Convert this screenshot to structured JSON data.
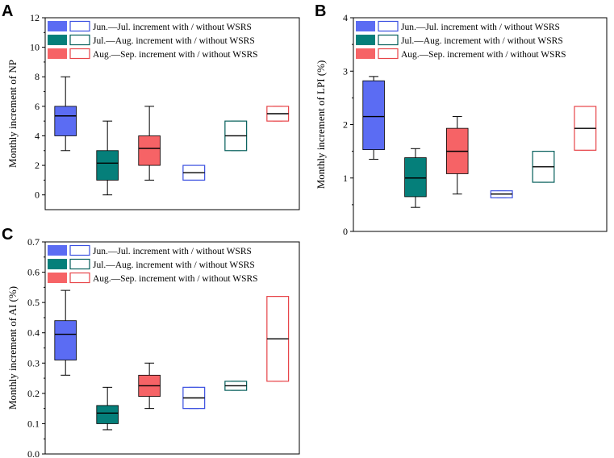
{
  "colors": {
    "series1": "#5b6cf3",
    "series1_edge": "#3a4fe0",
    "series2": "#057f7a",
    "series2_edge": "#045e5a",
    "series3": "#f66366",
    "series3_edge": "#e74448",
    "axis": "#000000"
  },
  "legend": [
    "Jun.—Jul. increment with / without WSRS",
    "Jul.—Aug. increment with / without WSRS",
    "Aug.—Sep. increment with / without WSRS"
  ],
  "chart_data": [
    {
      "type": "box",
      "panel": "A",
      "title": "",
      "xlabel": "",
      "ylabel": "Monthly increment of NP",
      "ylim": [
        -1,
        12
      ],
      "yticks": [
        0,
        2,
        4,
        6,
        8,
        10,
        12
      ],
      "legend_position": "top-left",
      "boxes": [
        {
          "series": 0,
          "filled": true,
          "min": 3,
          "q1": 4,
          "median": 5.35,
          "q3": 6,
          "max": 8
        },
        {
          "series": 1,
          "filled": true,
          "min": 0,
          "q1": 1,
          "median": 2.15,
          "q3": 3,
          "max": 5
        },
        {
          "series": 2,
          "filled": true,
          "min": 1,
          "q1": 2,
          "median": 3.15,
          "q3": 4,
          "max": 6
        },
        {
          "series": 0,
          "filled": false,
          "min": 1,
          "q1": 1,
          "median": 1.5,
          "q3": 2,
          "max": 2
        },
        {
          "series": 1,
          "filled": false,
          "min": 3,
          "q1": 3,
          "median": 4,
          "q3": 5,
          "max": 5
        },
        {
          "series": 2,
          "filled": false,
          "min": 5,
          "q1": 5,
          "median": 5.5,
          "q3": 6,
          "max": 6
        }
      ]
    },
    {
      "type": "box",
      "panel": "B",
      "title": "",
      "xlabel": "",
      "ylabel": "Monthly increment of LPI (%)",
      "ylim": [
        0,
        4
      ],
      "yticks": [
        0,
        1,
        2,
        3,
        4
      ],
      "legend_position": "top-left",
      "boxes": [
        {
          "series": 0,
          "filled": true,
          "min": 1.35,
          "q1": 1.53,
          "median": 2.15,
          "q3": 2.82,
          "max": 2.9
        },
        {
          "series": 1,
          "filled": true,
          "min": 0.45,
          "q1": 0.65,
          "median": 1.0,
          "q3": 1.38,
          "max": 1.55
        },
        {
          "series": 2,
          "filled": true,
          "min": 0.7,
          "q1": 1.08,
          "median": 1.5,
          "q3": 1.93,
          "max": 2.15
        },
        {
          "series": 0,
          "filled": false,
          "min": 0.63,
          "q1": 0.63,
          "median": 0.7,
          "q3": 0.76,
          "max": 0.76
        },
        {
          "series": 1,
          "filled": false,
          "min": 0.92,
          "q1": 0.92,
          "median": 1.21,
          "q3": 1.5,
          "max": 1.5
        },
        {
          "series": 2,
          "filled": false,
          "min": 1.52,
          "q1": 1.52,
          "median": 1.93,
          "q3": 2.34,
          "max": 2.34
        }
      ]
    },
    {
      "type": "box",
      "panel": "C",
      "title": "",
      "xlabel": "",
      "ylabel": "Monthly increment of AI (%)",
      "ylim": [
        0,
        0.7
      ],
      "yticks": [
        0.0,
        0.1,
        0.2,
        0.3,
        0.4,
        0.5,
        0.6,
        0.7
      ],
      "legend_position": "top-left",
      "boxes": [
        {
          "series": 0,
          "filled": true,
          "min": 0.26,
          "q1": 0.31,
          "median": 0.395,
          "q3": 0.44,
          "max": 0.54
        },
        {
          "series": 1,
          "filled": true,
          "min": 0.08,
          "q1": 0.1,
          "median": 0.135,
          "q3": 0.16,
          "max": 0.22
        },
        {
          "series": 2,
          "filled": true,
          "min": 0.15,
          "q1": 0.19,
          "median": 0.225,
          "q3": 0.26,
          "max": 0.3
        },
        {
          "series": 0,
          "filled": false,
          "min": 0.15,
          "q1": 0.15,
          "median": 0.185,
          "q3": 0.22,
          "max": 0.22
        },
        {
          "series": 1,
          "filled": false,
          "min": 0.21,
          "q1": 0.21,
          "median": 0.225,
          "q3": 0.24,
          "max": 0.24
        },
        {
          "series": 2,
          "filled": false,
          "min": 0.24,
          "q1": 0.24,
          "median": 0.38,
          "q3": 0.52,
          "max": 0.52
        }
      ]
    }
  ]
}
